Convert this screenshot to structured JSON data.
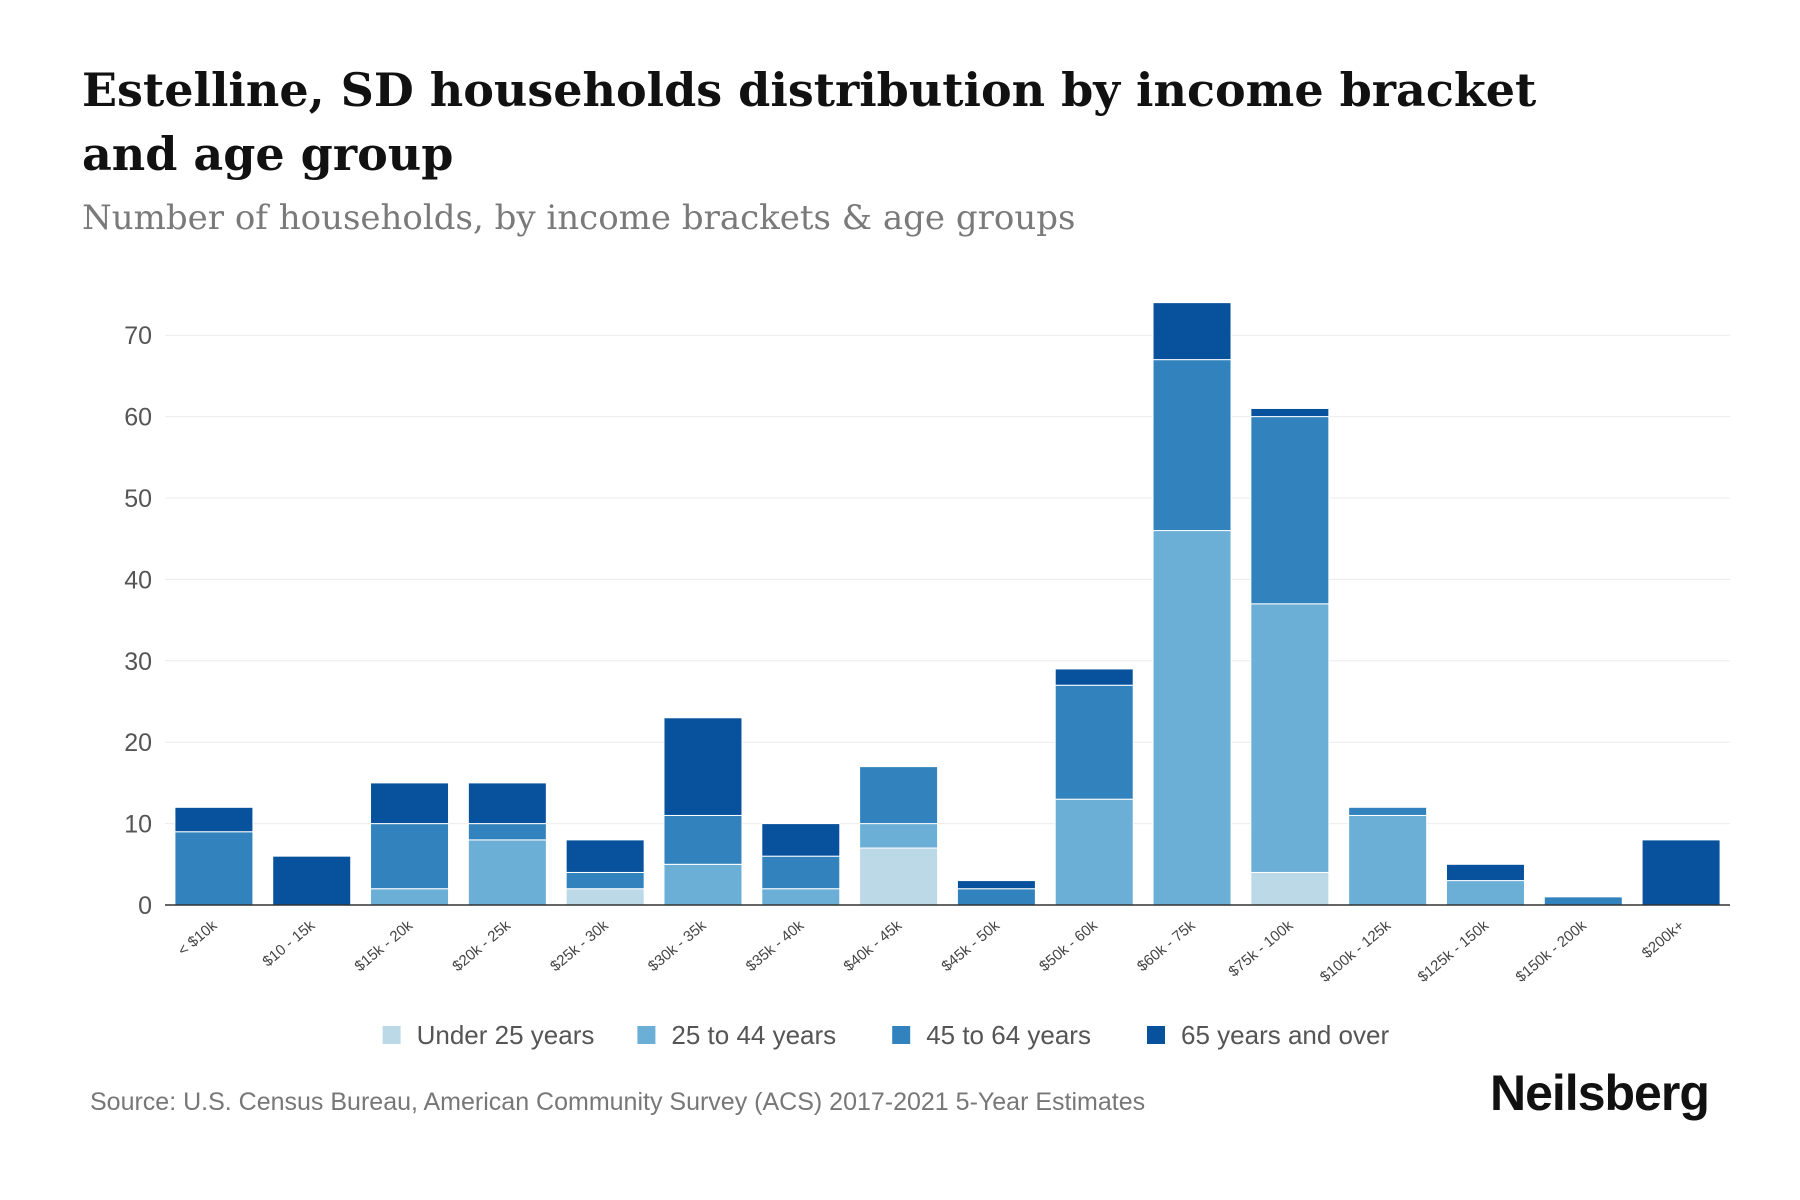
{
  "chart_data": {
    "type": "bar",
    "stacked": true,
    "title": "Estelline, SD households distribution by income bracket and age group",
    "subtitle": "Number of households, by income brackets & age groups",
    "xlabel": "",
    "ylabel": "",
    "ylim": [
      0,
      75
    ],
    "yticks": [
      0,
      10,
      20,
      30,
      40,
      50,
      60,
      70
    ],
    "grid": true,
    "legend_position": "bottom-center",
    "categories": [
      "< $10k",
      "$10 - 15k",
      "$15k - 20k",
      "$20k - 25k",
      "$25k - 30k",
      "$30k - 35k",
      "$35k - 40k",
      "$40k - 45k",
      "$45k - 50k",
      "$50k - 60k",
      "$60k - 75k",
      "$75k - 100k",
      "$100k - 125k",
      "$125k - 150k",
      "$150k - 200k",
      "$200k+"
    ],
    "series": [
      {
        "name": "Under 25 years",
        "color": "#bcd9e8",
        "values": [
          0,
          0,
          0,
          0,
          2,
          0,
          0,
          7,
          0,
          0,
          0,
          4,
          0,
          0,
          0,
          0
        ]
      },
      {
        "name": "25 to 44 years",
        "color": "#6baed6",
        "values": [
          0,
          0,
          2,
          8,
          0,
          5,
          2,
          3,
          0,
          13,
          46,
          33,
          11,
          3,
          0,
          0
        ]
      },
      {
        "name": "45 to 64 years",
        "color": "#3182bd",
        "values": [
          9,
          0,
          8,
          2,
          2,
          6,
          4,
          7,
          2,
          14,
          21,
          23,
          1,
          0,
          1,
          0
        ]
      },
      {
        "name": "65 years and over",
        "color": "#08519c",
        "values": [
          3,
          6,
          5,
          5,
          4,
          12,
          4,
          0,
          1,
          2,
          7,
          1,
          0,
          2,
          0,
          8
        ]
      }
    ]
  },
  "source": "Source: U.S. Census Bureau, American Community Survey (ACS) 2017-2021 5-Year Estimates",
  "brand": "Neilsberg"
}
